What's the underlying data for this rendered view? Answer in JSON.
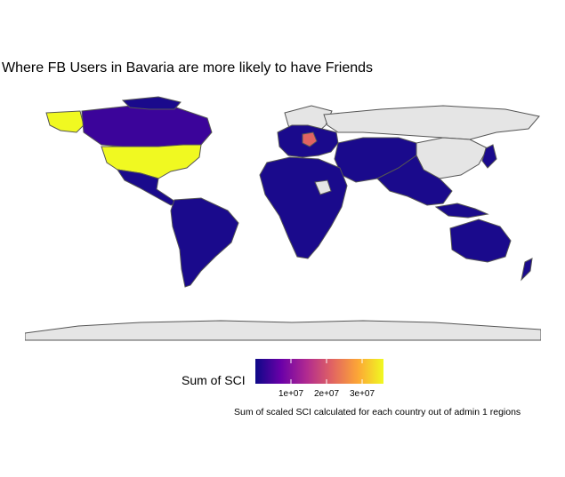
{
  "title": "Where FB Users in Bavaria are more likely to have Friends",
  "legend": {
    "label": "Sum of SCI",
    "ticks": [
      "1e+07",
      "2e+07",
      "3e+07"
    ],
    "tick_values": [
      10000000,
      20000000,
      30000000
    ],
    "min": 0,
    "max": 36000000,
    "colors": [
      "#0d0887",
      "#6a00a8",
      "#b12a90",
      "#e16462",
      "#fca636",
      "#f0f921"
    ]
  },
  "caption": "Sum of scaled SCI calculated for each country out of admin 1 regions",
  "colors": {
    "no_data": "#e5e5e5",
    "low": "#0d0887",
    "high": "#f0f921",
    "border": "#555555"
  },
  "regions": [
    {
      "name": "United States",
      "level": "high"
    },
    {
      "name": "Canada",
      "level": "low-mid"
    },
    {
      "name": "Germany",
      "level": "mid"
    },
    {
      "name": "Russia",
      "level": "no-data"
    },
    {
      "name": "Greenland",
      "level": "no-data"
    },
    {
      "name": "Antarctica",
      "level": "no-data"
    },
    {
      "name": "China",
      "level": "no-data"
    }
  ]
}
